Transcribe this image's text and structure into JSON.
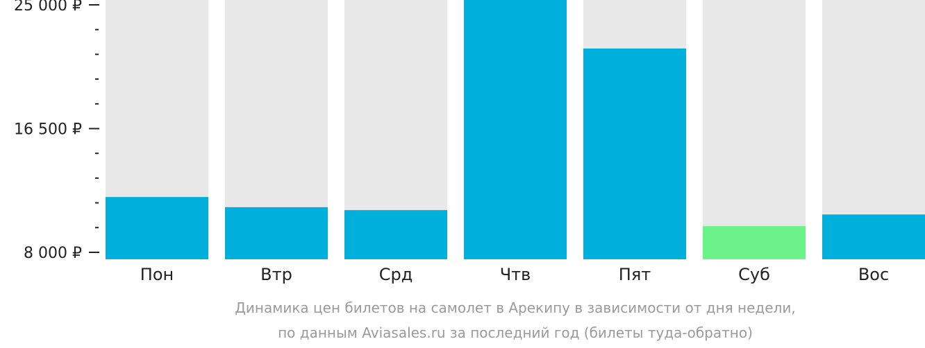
{
  "chart_data": {
    "type": "bar",
    "categories": [
      "Пон",
      "Втр",
      "Срд",
      "Чтв",
      "Пят",
      "Суб",
      "Вос"
    ],
    "values": [
      11800,
      11100,
      10900,
      25000,
      22000,
      9800,
      10600
    ],
    "highlight_index": 5,
    "ylim": [
      8000,
      25000
    ],
    "yticks": [
      {
        "value": 25000,
        "label": "25 000 ₽"
      },
      {
        "value": 16500,
        "label": "16 500 ₽"
      },
      {
        "value": 8000,
        "label": "8 000 ₽"
      }
    ],
    "minor_ticks": [
      23300,
      21600,
      19900,
      18200,
      14800,
      13100,
      11400,
      9700
    ],
    "colors": {
      "bar": "#00afdb",
      "highlight": "#6bf38a",
      "track": "#e8e8e8",
      "axis": "#222222"
    },
    "caption": [
      "Динамика цен билетов на самолет в Арекипу в зависимости от дня недели,",
      "по данным Aviasales.ru за последний год (билеты туда-обратно)"
    ]
  }
}
